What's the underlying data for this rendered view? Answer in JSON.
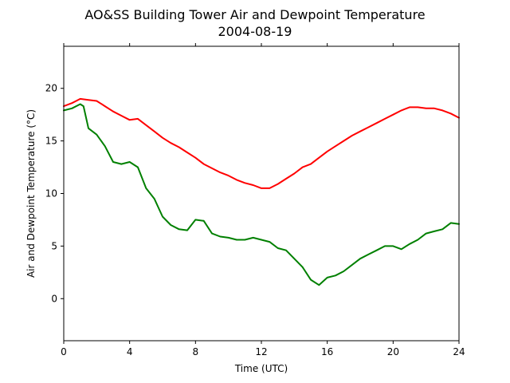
{
  "chart_data": {
    "type": "line",
    "title_line1": "AO&SS Building Tower Air and Dewpoint Temperature",
    "title_line2": "2004-08-19",
    "xlabel": "Time (UTC)",
    "ylabel": "Air and Dewpoint Temperature (°C)",
    "xlim": [
      0,
      24
    ],
    "ylim": [
      -4,
      24
    ],
    "xticks": [
      0,
      4,
      8,
      12,
      16,
      20,
      24
    ],
    "yticks": [
      0,
      5,
      10,
      15,
      20
    ],
    "grid": false,
    "legend": "none",
    "series": [
      {
        "color": "#ff0000",
        "x": [
          0,
          0.5,
          1,
          1.5,
          2,
          2.5,
          3,
          3.5,
          4,
          4.5,
          5,
          5.5,
          6,
          6.5,
          7,
          7.5,
          8,
          8.5,
          9,
          9.5,
          10,
          10.5,
          11,
          11.5,
          12,
          12.5,
          13,
          13.5,
          14,
          14.5,
          15,
          15.5,
          16,
          16.5,
          17,
          17.5,
          18,
          18.5,
          19,
          19.5,
          20,
          20.5,
          21,
          21.5,
          22,
          22.5,
          23,
          23.5,
          24
        ],
        "y": [
          18.3,
          18.6,
          19.0,
          18.9,
          18.8,
          18.3,
          17.8,
          17.4,
          17.0,
          17.1,
          16.5,
          15.9,
          15.3,
          14.8,
          14.4,
          13.9,
          13.4,
          12.8,
          12.4,
          12.0,
          11.7,
          11.3,
          11.0,
          10.8,
          10.5,
          10.5,
          10.9,
          11.4,
          11.9,
          12.5,
          12.8,
          13.4,
          14.0,
          14.5,
          15.0,
          15.5,
          15.9,
          16.3,
          16.7,
          17.1,
          17.5,
          17.9,
          18.2,
          18.2,
          18.1,
          18.1,
          17.9,
          17.6,
          17.2
        ]
      },
      {
        "color": "#008000",
        "x": [
          0,
          0.5,
          1,
          1.2,
          1.5,
          2,
          2.5,
          3,
          3.5,
          4,
          4.5,
          5,
          5.5,
          6,
          6.5,
          7,
          7.5,
          8,
          8.5,
          9,
          9.5,
          10,
          10.5,
          11,
          11.5,
          12,
          12.5,
          13,
          13.5,
          14,
          14.5,
          15,
          15.5,
          16,
          16.5,
          17,
          17.5,
          18,
          18.5,
          19,
          19.5,
          20,
          20.5,
          21,
          21.5,
          22,
          22.5,
          23,
          23.5,
          24
        ],
        "y": [
          17.9,
          18.1,
          18.5,
          18.3,
          16.2,
          15.6,
          14.5,
          13.0,
          12.8,
          13.0,
          12.5,
          10.5,
          9.5,
          7.8,
          7.0,
          6.6,
          6.5,
          7.5,
          7.4,
          6.2,
          5.9,
          5.8,
          5.6,
          5.6,
          5.8,
          5.6,
          5.4,
          4.8,
          4.6,
          3.8,
          3.0,
          1.8,
          1.3,
          2.0,
          2.2,
          2.6,
          3.2,
          3.8,
          4.2,
          4.6,
          5.0,
          5.0,
          4.7,
          5.2,
          5.6,
          6.2,
          6.4,
          6.6,
          7.2,
          7.1
        ]
      }
    ]
  }
}
